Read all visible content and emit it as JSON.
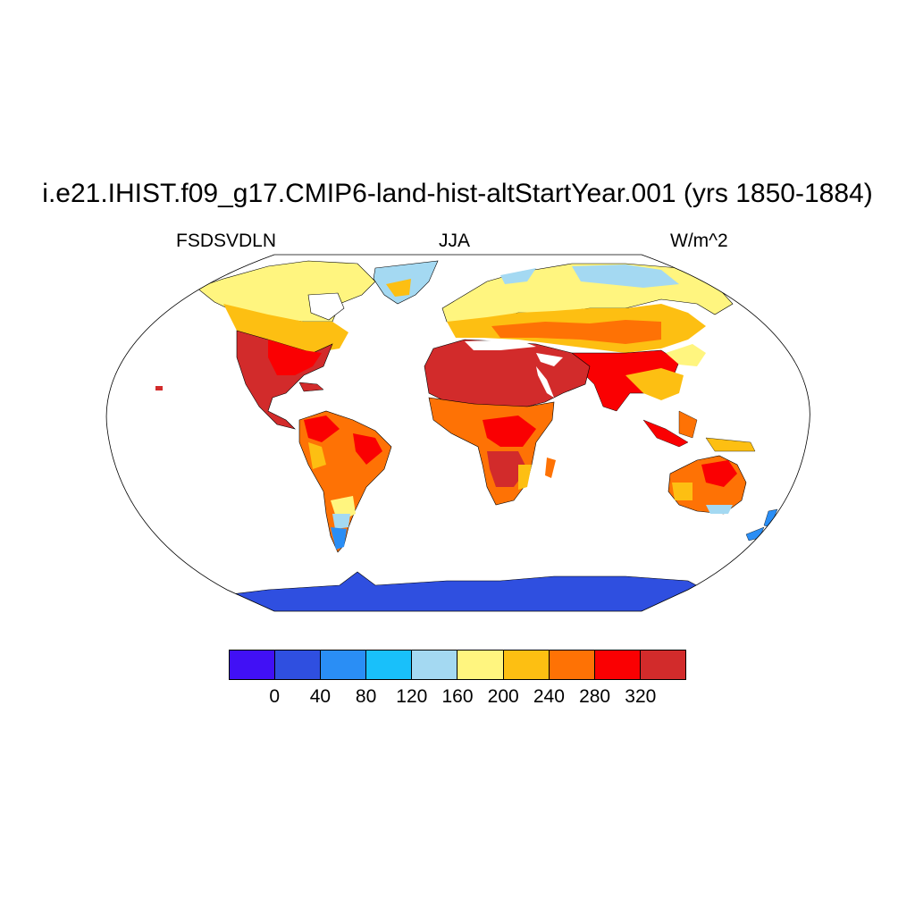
{
  "title": "i.e21.IHIST.f09_g17.CMIP6-land-hist-altStartYear.001 (yrs 1850-1884)",
  "subtitle_left": "FSDSVDLN",
  "subtitle_center": "JJA",
  "subtitle_right": "W/m^2",
  "colorbar": {
    "colors": [
      "#4110f5",
      "#2f4fe0",
      "#2a8ef5",
      "#19c0fa",
      "#a4d9f2",
      "#fff57f",
      "#fdbf12",
      "#fe7205",
      "#fa0002",
      "#d22b2b"
    ],
    "labels": [
      "0",
      "40",
      "80",
      "120",
      "160",
      "200",
      "240",
      "280",
      "320"
    ]
  },
  "map": {
    "projection": "robinson",
    "land_regions": [
      {
        "name": "north-america-north",
        "level": "160-200"
      },
      {
        "name": "north-america-south",
        "level": ">320"
      },
      {
        "name": "south-america",
        "level": "240-320"
      },
      {
        "name": "greenland",
        "level": "80-160"
      },
      {
        "name": "europe-asia-north",
        "level": "160-240"
      },
      {
        "name": "sahara-arabia",
        "level": ">320"
      },
      {
        "name": "southern-africa",
        "level": "240-320"
      },
      {
        "name": "australia",
        "level": "240-320"
      },
      {
        "name": "antarctica",
        "level": "0-40"
      }
    ]
  }
}
